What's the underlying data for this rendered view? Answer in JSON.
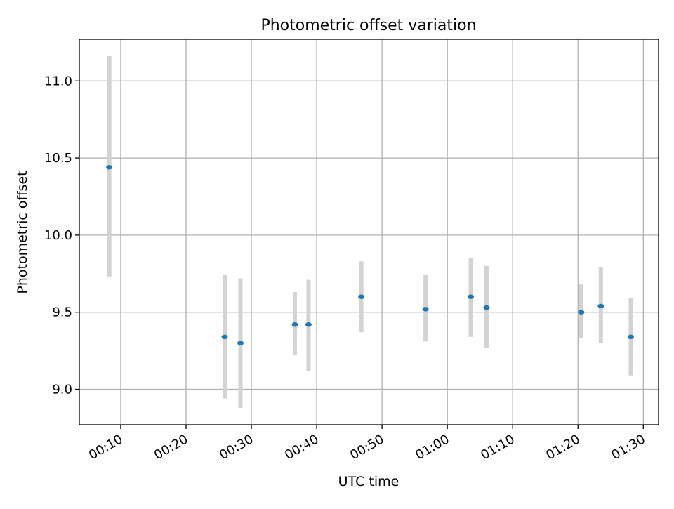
{
  "chart_data": {
    "type": "scatter",
    "title": "Photometric offset variation",
    "xlabel": "UTC time",
    "ylabel": "Photometric offset",
    "x_ticks": [
      "00:10",
      "00:20",
      "00:30",
      "00:40",
      "00:50",
      "01:00",
      "01:10",
      "01:20",
      "01:30"
    ],
    "y_ticks": [
      "9.0",
      "9.5",
      "10.0",
      "10.5",
      "11.0"
    ],
    "xlim": [
      "00:03:40",
      "01:32:20"
    ],
    "ylim": [
      8.77,
      11.27
    ],
    "grid": true,
    "colors": {
      "point": "#1f77b4",
      "errorbar": "#d3d3d3"
    },
    "points": [
      {
        "x": "00:08:15",
        "y": 10.44,
        "ylow": 9.73,
        "yhigh": 11.16
      },
      {
        "x": "00:25:55",
        "y": 9.34,
        "ylow": 8.94,
        "yhigh": 9.74
      },
      {
        "x": "00:28:20",
        "y": 9.3,
        "ylow": 8.88,
        "yhigh": 9.72
      },
      {
        "x": "00:36:40",
        "y": 9.42,
        "ylow": 9.22,
        "yhigh": 9.63
      },
      {
        "x": "00:38:45",
        "y": 9.42,
        "ylow": 9.12,
        "yhigh": 9.71
      },
      {
        "x": "00:46:50",
        "y": 9.6,
        "ylow": 9.37,
        "yhigh": 9.83
      },
      {
        "x": "00:56:40",
        "y": 9.52,
        "ylow": 9.31,
        "yhigh": 9.74
      },
      {
        "x": "01:03:35",
        "y": 9.6,
        "ylow": 9.34,
        "yhigh": 9.85
      },
      {
        "x": "01:06:00",
        "y": 9.53,
        "ylow": 9.27,
        "yhigh": 9.8
      },
      {
        "x": "01:20:30",
        "y": 9.5,
        "ylow": 9.33,
        "yhigh": 9.68
      },
      {
        "x": "01:23:30",
        "y": 9.54,
        "ylow": 9.3,
        "yhigh": 9.79
      },
      {
        "x": "01:28:05",
        "y": 9.34,
        "ylow": 9.09,
        "yhigh": 9.59
      }
    ]
  }
}
